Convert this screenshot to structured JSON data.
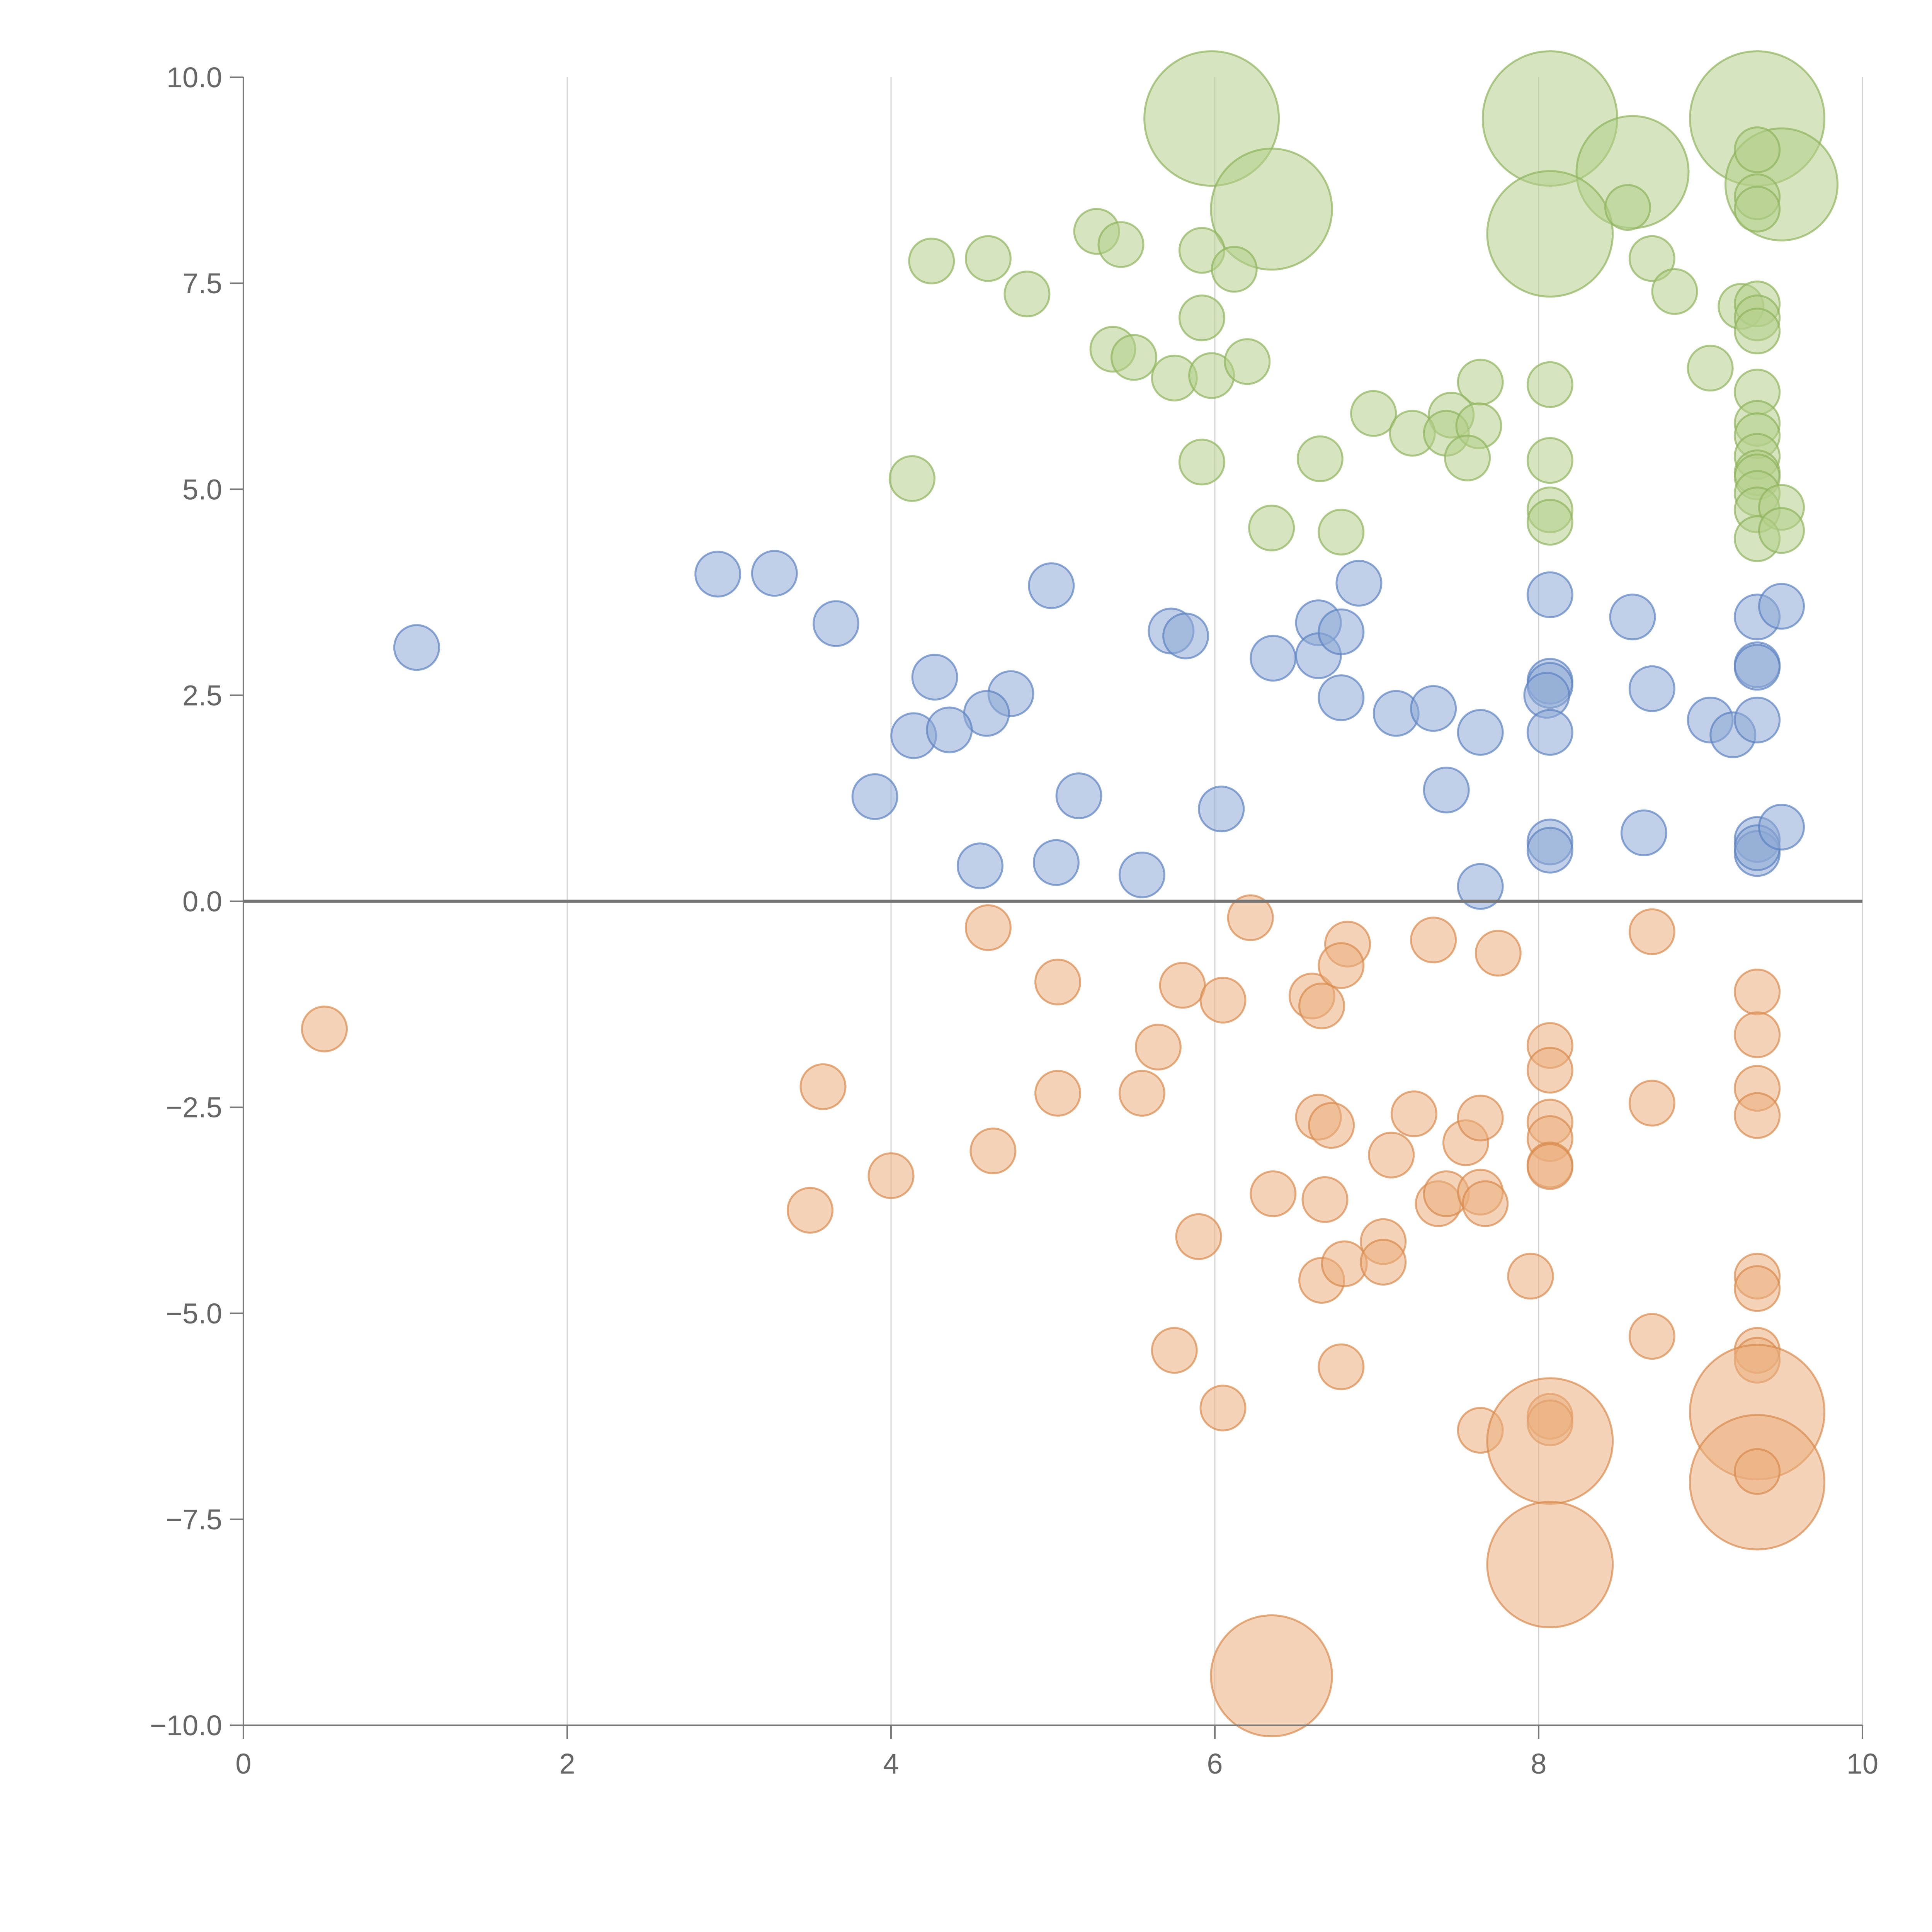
{
  "chart_data": {
    "type": "scatter",
    "title": "",
    "xlabel": "",
    "ylabel": "",
    "xlim": [
      0,
      10
    ],
    "ylim": [
      -10,
      10
    ],
    "grid": "vertical-only",
    "legend": "none",
    "x_ticks": [
      "0",
      "2",
      "4",
      "6",
      "8",
      "10"
    ],
    "y_ticks": [
      "10.0",
      "7.5",
      "5.0",
      "2.5",
      "0.0",
      "−2.5",
      "−5.0",
      "−7.5",
      "−10.0"
    ],
    "colors": {
      "green_fill": "#b5d08a",
      "green_stroke": "#8fb35c",
      "blue_fill": "#8eaad6",
      "blue_stroke": "#5b82c0",
      "orange_fill": "#ebae7e",
      "orange_stroke": "#d98a4d"
    },
    "series": [
      {
        "name": "green",
        "points": [
          [
            5.98,
            9.5,
            3
          ],
          [
            8.07,
            9.5,
            3
          ],
          [
            9.35,
            9.5,
            3
          ],
          [
            9.5,
            8.7,
            2.5
          ],
          [
            8.58,
            8.85,
            2.5
          ],
          [
            6.35,
            8.4,
            2.7
          ],
          [
            8.07,
            8.1,
            2.8
          ],
          [
            5.27,
            8.13,
            1
          ],
          [
            5.42,
            7.97,
            1
          ],
          [
            5.92,
            7.9,
            1
          ],
          [
            4.25,
            7.77,
            1
          ],
          [
            4.6,
            7.8,
            1
          ],
          [
            6.12,
            7.67,
            1
          ],
          [
            4.84,
            7.37,
            1
          ],
          [
            5.92,
            7.08,
            1
          ],
          [
            5.37,
            6.7,
            1
          ],
          [
            5.5,
            6.6,
            1
          ],
          [
            5.75,
            6.35,
            1
          ],
          [
            5.98,
            6.38,
            1
          ],
          [
            6.2,
            6.55,
            1
          ],
          [
            7.64,
            6.3,
            1
          ],
          [
            8.07,
            6.27,
            1
          ],
          [
            9.06,
            6.47,
            1
          ],
          [
            9.35,
            6.18,
            1
          ],
          [
            6.98,
            5.92,
            1
          ],
          [
            7.46,
            5.9,
            1
          ],
          [
            7.22,
            5.68,
            1
          ],
          [
            7.43,
            5.68,
            1
          ],
          [
            7.63,
            5.77,
            1
          ],
          [
            7.56,
            5.38,
            1
          ],
          [
            6.65,
            5.37,
            1
          ],
          [
            5.92,
            5.33,
            1
          ],
          [
            4.13,
            5.13,
            1
          ],
          [
            8.07,
            5.35,
            1
          ],
          [
            8.07,
            4.75,
            1
          ],
          [
            8.07,
            4.6,
            1
          ],
          [
            6.35,
            4.53,
            1
          ],
          [
            6.78,
            4.48,
            1
          ],
          [
            9.35,
            5.8,
            1
          ],
          [
            9.35,
            5.65,
            1
          ],
          [
            9.35,
            5.4,
            1
          ],
          [
            9.35,
            5.2,
            1
          ],
          [
            9.35,
            5.15,
            1
          ],
          [
            9.35,
            4.95,
            1
          ],
          [
            9.35,
            4.75,
            1
          ],
          [
            9.5,
            4.78,
            1
          ],
          [
            9.35,
            4.4,
            1
          ],
          [
            9.5,
            4.5,
            1
          ],
          [
            8.55,
            8.42,
            1
          ],
          [
            8.7,
            7.8,
            1
          ],
          [
            8.84,
            7.4,
            1
          ],
          [
            9.25,
            7.22,
            1
          ],
          [
            9.35,
            7.25,
            1
          ],
          [
            9.35,
            7.08,
            1
          ],
          [
            9.35,
            6.92,
            1
          ],
          [
            9.35,
            9.12,
            1
          ],
          [
            9.35,
            8.55,
            1
          ],
          [
            9.35,
            8.4,
            1
          ]
        ]
      },
      {
        "name": "blue",
        "points": [
          [
            1.07,
            3.08,
            1
          ],
          [
            2.93,
            3.97,
            1
          ],
          [
            3.28,
            3.98,
            1
          ],
          [
            3.66,
            3.37,
            1
          ],
          [
            4.99,
            3.83,
            1
          ],
          [
            5.73,
            3.28,
            1
          ],
          [
            5.82,
            3.22,
            1
          ],
          [
            4.27,
            2.72,
            1
          ],
          [
            4.74,
            2.52,
            1
          ],
          [
            4.59,
            2.28,
            1
          ],
          [
            4.14,
            2.01,
            1
          ],
          [
            4.36,
            2.08,
            1
          ],
          [
            3.9,
            1.27,
            1
          ],
          [
            5.16,
            1.28,
            1
          ],
          [
            4.55,
            0.43,
            1
          ],
          [
            5.02,
            0.47,
            1
          ],
          [
            5.55,
            0.32,
            1
          ],
          [
            6.04,
            1.12,
            1
          ],
          [
            6.36,
            2.95,
            1
          ],
          [
            6.64,
            3.38,
            1
          ],
          [
            6.64,
            2.98,
            1
          ],
          [
            6.89,
            3.86,
            1
          ],
          [
            6.78,
            3.27,
            1
          ],
          [
            6.78,
            2.47,
            1
          ],
          [
            7.12,
            2.28,
            1
          ],
          [
            7.35,
            2.34,
            1
          ],
          [
            7.64,
            2.05,
            1
          ],
          [
            7.43,
            1.35,
            1
          ],
          [
            7.64,
            0.18,
            1
          ],
          [
            8.07,
            3.72,
            1
          ],
          [
            8.07,
            2.67,
            1
          ],
          [
            8.07,
            2.62,
            1
          ],
          [
            8.05,
            2.5,
            1
          ],
          [
            8.07,
            2.05,
            1
          ],
          [
            8.07,
            0.72,
            1
          ],
          [
            8.07,
            0.62,
            1
          ],
          [
            8.58,
            3.45,
            1
          ],
          [
            8.7,
            2.58,
            1
          ],
          [
            8.65,
            0.83,
            1
          ],
          [
            9.06,
            2.2,
            1
          ],
          [
            9.2,
            2.02,
            1
          ],
          [
            9.35,
            3.45,
            1
          ],
          [
            9.35,
            2.87,
            1
          ],
          [
            9.35,
            2.84,
            1
          ],
          [
            9.35,
            2.2,
            1
          ],
          [
            9.5,
            3.58,
            1
          ],
          [
            9.35,
            0.75,
            1
          ],
          [
            9.35,
            0.58,
            1
          ],
          [
            9.35,
            0.65,
            1
          ],
          [
            9.5,
            0.9,
            1
          ]
        ]
      },
      {
        "name": "orange",
        "points": [
          [
            0.5,
            -1.55,
            1
          ],
          [
            3.58,
            -2.25,
            1
          ],
          [
            3.5,
            -3.75,
            1
          ],
          [
            4.0,
            -3.33,
            1
          ],
          [
            4.6,
            -0.32,
            1
          ],
          [
            4.63,
            -3.03,
            1
          ],
          [
            5.03,
            -0.98,
            1
          ],
          [
            5.03,
            -2.33,
            1
          ],
          [
            5.55,
            -2.33,
            1
          ],
          [
            5.65,
            -1.77,
            1
          ],
          [
            5.8,
            -1.02,
            1
          ],
          [
            5.75,
            -5.45,
            1
          ],
          [
            5.9,
            -4.07,
            1
          ],
          [
            6.05,
            -1.2,
            1
          ],
          [
            6.05,
            -6.15,
            1
          ],
          [
            6.22,
            -0.2,
            1
          ],
          [
            6.36,
            -3.55,
            1
          ],
          [
            6.6,
            -1.15,
            1
          ],
          [
            6.66,
            -1.27,
            1
          ],
          [
            6.64,
            -2.62,
            1
          ],
          [
            6.72,
            -2.72,
            1
          ],
          [
            6.68,
            -3.62,
            1
          ],
          [
            6.66,
            -4.6,
            1
          ],
          [
            6.8,
            -4.4,
            1
          ],
          [
            6.82,
            -0.52,
            1
          ],
          [
            6.78,
            -0.78,
            1
          ],
          [
            6.78,
            -5.65,
            1
          ],
          [
            7.04,
            -4.13,
            1
          ],
          [
            7.04,
            -4.38,
            1
          ],
          [
            7.09,
            -3.08,
            1
          ],
          [
            7.23,
            -2.58,
            1
          ],
          [
            7.35,
            -0.47,
            1
          ],
          [
            7.38,
            -3.67,
            1
          ],
          [
            7.43,
            -3.55,
            1
          ],
          [
            7.55,
            -2.93,
            1
          ],
          [
            7.64,
            -2.63,
            1
          ],
          [
            7.64,
            -3.53,
            1
          ],
          [
            7.67,
            -3.67,
            1
          ],
          [
            7.75,
            -0.63,
            1
          ],
          [
            7.64,
            -6.42,
            1
          ],
          [
            7.95,
            -4.55,
            1
          ],
          [
            8.07,
            -1.75,
            1
          ],
          [
            8.07,
            -2.05,
            1
          ],
          [
            8.07,
            -2.68,
            1
          ],
          [
            8.07,
            -2.88,
            1
          ],
          [
            8.07,
            -3.2,
            1
          ],
          [
            8.07,
            -3.22,
            1
          ],
          [
            8.07,
            -6.25,
            1
          ],
          [
            8.07,
            -6.33,
            1
          ],
          [
            8.07,
            -6.55,
            2.8
          ],
          [
            8.07,
            -8.05,
            2.8
          ],
          [
            6.35,
            -9.4,
            2.7
          ],
          [
            8.7,
            -0.37,
            1
          ],
          [
            8.7,
            -2.45,
            1
          ],
          [
            8.7,
            -5.28,
            1
          ],
          [
            9.35,
            -1.1,
            1
          ],
          [
            9.35,
            -1.62,
            1
          ],
          [
            9.35,
            -2.27,
            1
          ],
          [
            9.35,
            -2.6,
            1
          ],
          [
            9.35,
            -4.55,
            1
          ],
          [
            9.35,
            -4.7,
            1
          ],
          [
            9.35,
            -5.45,
            1
          ],
          [
            9.35,
            -5.57,
            1
          ],
          [
            9.35,
            -6.2,
            3
          ],
          [
            9.35,
            -7.05,
            3
          ],
          [
            9.35,
            -6.92,
            1
          ]
        ]
      }
    ]
  }
}
